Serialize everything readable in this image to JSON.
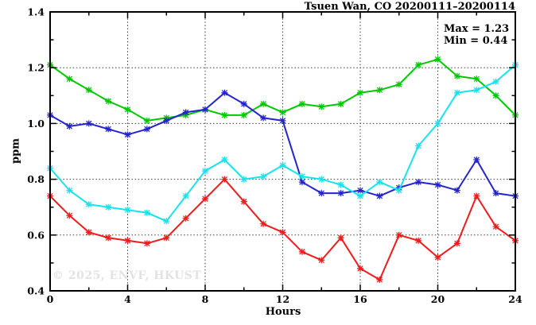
{
  "header": {
    "title": "Tsuen Wan, CO 20200111–20200114"
  },
  "annotation": {
    "max_label": "Max = 1.23",
    "min_label": "Min = 0.44"
  },
  "watermark": "© 2025, ENVF, HKUST",
  "chart_data": {
    "type": "line",
    "title": "Tsuen Wan, CO 20200111–20200114",
    "xlabel": "Hours",
    "ylabel": "ppm",
    "xlim": [
      0,
      24
    ],
    "ylim": [
      0.4,
      1.4
    ],
    "x_major_ticks": [
      0,
      4,
      8,
      12,
      16,
      20,
      24
    ],
    "x_minor_step": 2,
    "y_major_ticks": [
      0.4,
      0.6,
      0.8,
      1.0,
      1.2,
      1.4
    ],
    "y_minor_step": 0.1,
    "grid": "dotted lines at interior major ticks, full frame with mirrored inside ticks",
    "legend_position": "none",
    "stats": {
      "max": 1.23,
      "min": 0.44
    },
    "x": [
      0,
      1,
      2,
      3,
      4,
      5,
      6,
      7,
      8,
      9,
      10,
      11,
      12,
      13,
      14,
      15,
      16,
      17,
      18,
      19,
      20,
      21,
      22,
      23,
      24
    ],
    "series": [
      {
        "name": "green-line",
        "color": "#00c800",
        "values": [
          1.21,
          1.16,
          1.12,
          1.08,
          1.05,
          1.01,
          1.02,
          1.03,
          1.05,
          1.03,
          1.03,
          1.07,
          1.04,
          1.07,
          1.06,
          1.07,
          1.11,
          1.12,
          1.14,
          1.21,
          1.23,
          1.17,
          1.16,
          1.1,
          1.03
        ]
      },
      {
        "name": "blue-line",
        "color": "#2424cc",
        "values": [
          1.03,
          0.99,
          1.0,
          0.98,
          0.96,
          0.98,
          1.01,
          1.04,
          1.05,
          1.11,
          1.07,
          1.02,
          1.01,
          0.79,
          0.75,
          0.75,
          0.76,
          0.74,
          0.77,
          0.79,
          0.78,
          0.76,
          0.87,
          0.75,
          0.74
        ]
      },
      {
        "name": "cyan-line",
        "color": "#18e2ee",
        "values": [
          0.84,
          0.76,
          0.71,
          0.7,
          0.69,
          0.68,
          0.65,
          0.74,
          0.83,
          0.87,
          0.8,
          0.81,
          0.85,
          0.81,
          0.8,
          0.78,
          0.74,
          0.79,
          0.76,
          0.92,
          1.0,
          1.11,
          1.12,
          1.15,
          1.21
        ]
      },
      {
        "name": "red-line",
        "color": "#ee1c1c",
        "values": [
          0.74,
          0.67,
          0.61,
          0.59,
          0.58,
          0.57,
          0.59,
          0.66,
          0.73,
          0.8,
          0.72,
          0.64,
          0.61,
          0.54,
          0.51,
          0.59,
          0.48,
          0.44,
          0.6,
          0.58,
          0.52,
          0.57,
          0.74,
          0.63,
          0.58
        ]
      }
    ]
  }
}
